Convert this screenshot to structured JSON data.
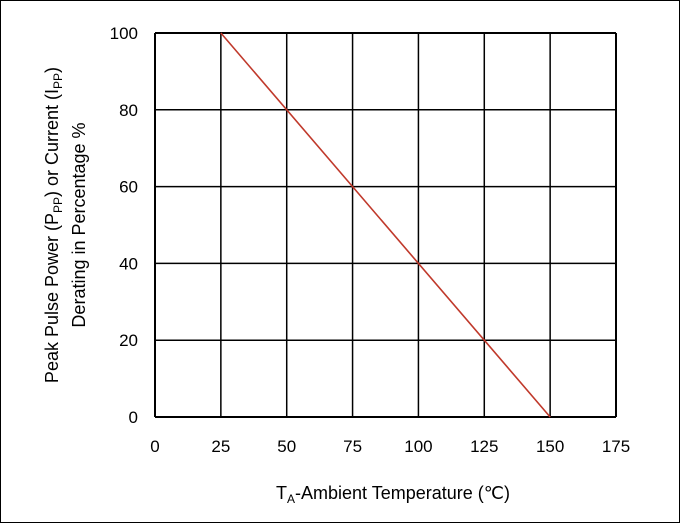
{
  "chart_data": {
    "type": "line",
    "title": "",
    "xlabel": {
      "main": "T",
      "sub": "A",
      "rest": "-Ambient Temperature (℃)"
    },
    "ylabel": {
      "line1": {
        "p1": "Peak Pulse Power (P",
        "sub1": "PP",
        "p2": ") or Current (I",
        "sub2": "PP",
        "p3": ")"
      },
      "line2": "Derating in Percentage %"
    },
    "xlim": [
      0,
      175
    ],
    "ylim": [
      0,
      100
    ],
    "x_ticks": [
      "0",
      "25",
      "50",
      "75",
      "100",
      "125",
      "150",
      "175"
    ],
    "y_ticks": [
      "0",
      "20",
      "40",
      "60",
      "80",
      "100"
    ],
    "grid": true,
    "series": [
      {
        "color": "#c0392b",
        "x": [
          25,
          150
        ],
        "y": [
          100,
          0
        ]
      }
    ]
  }
}
